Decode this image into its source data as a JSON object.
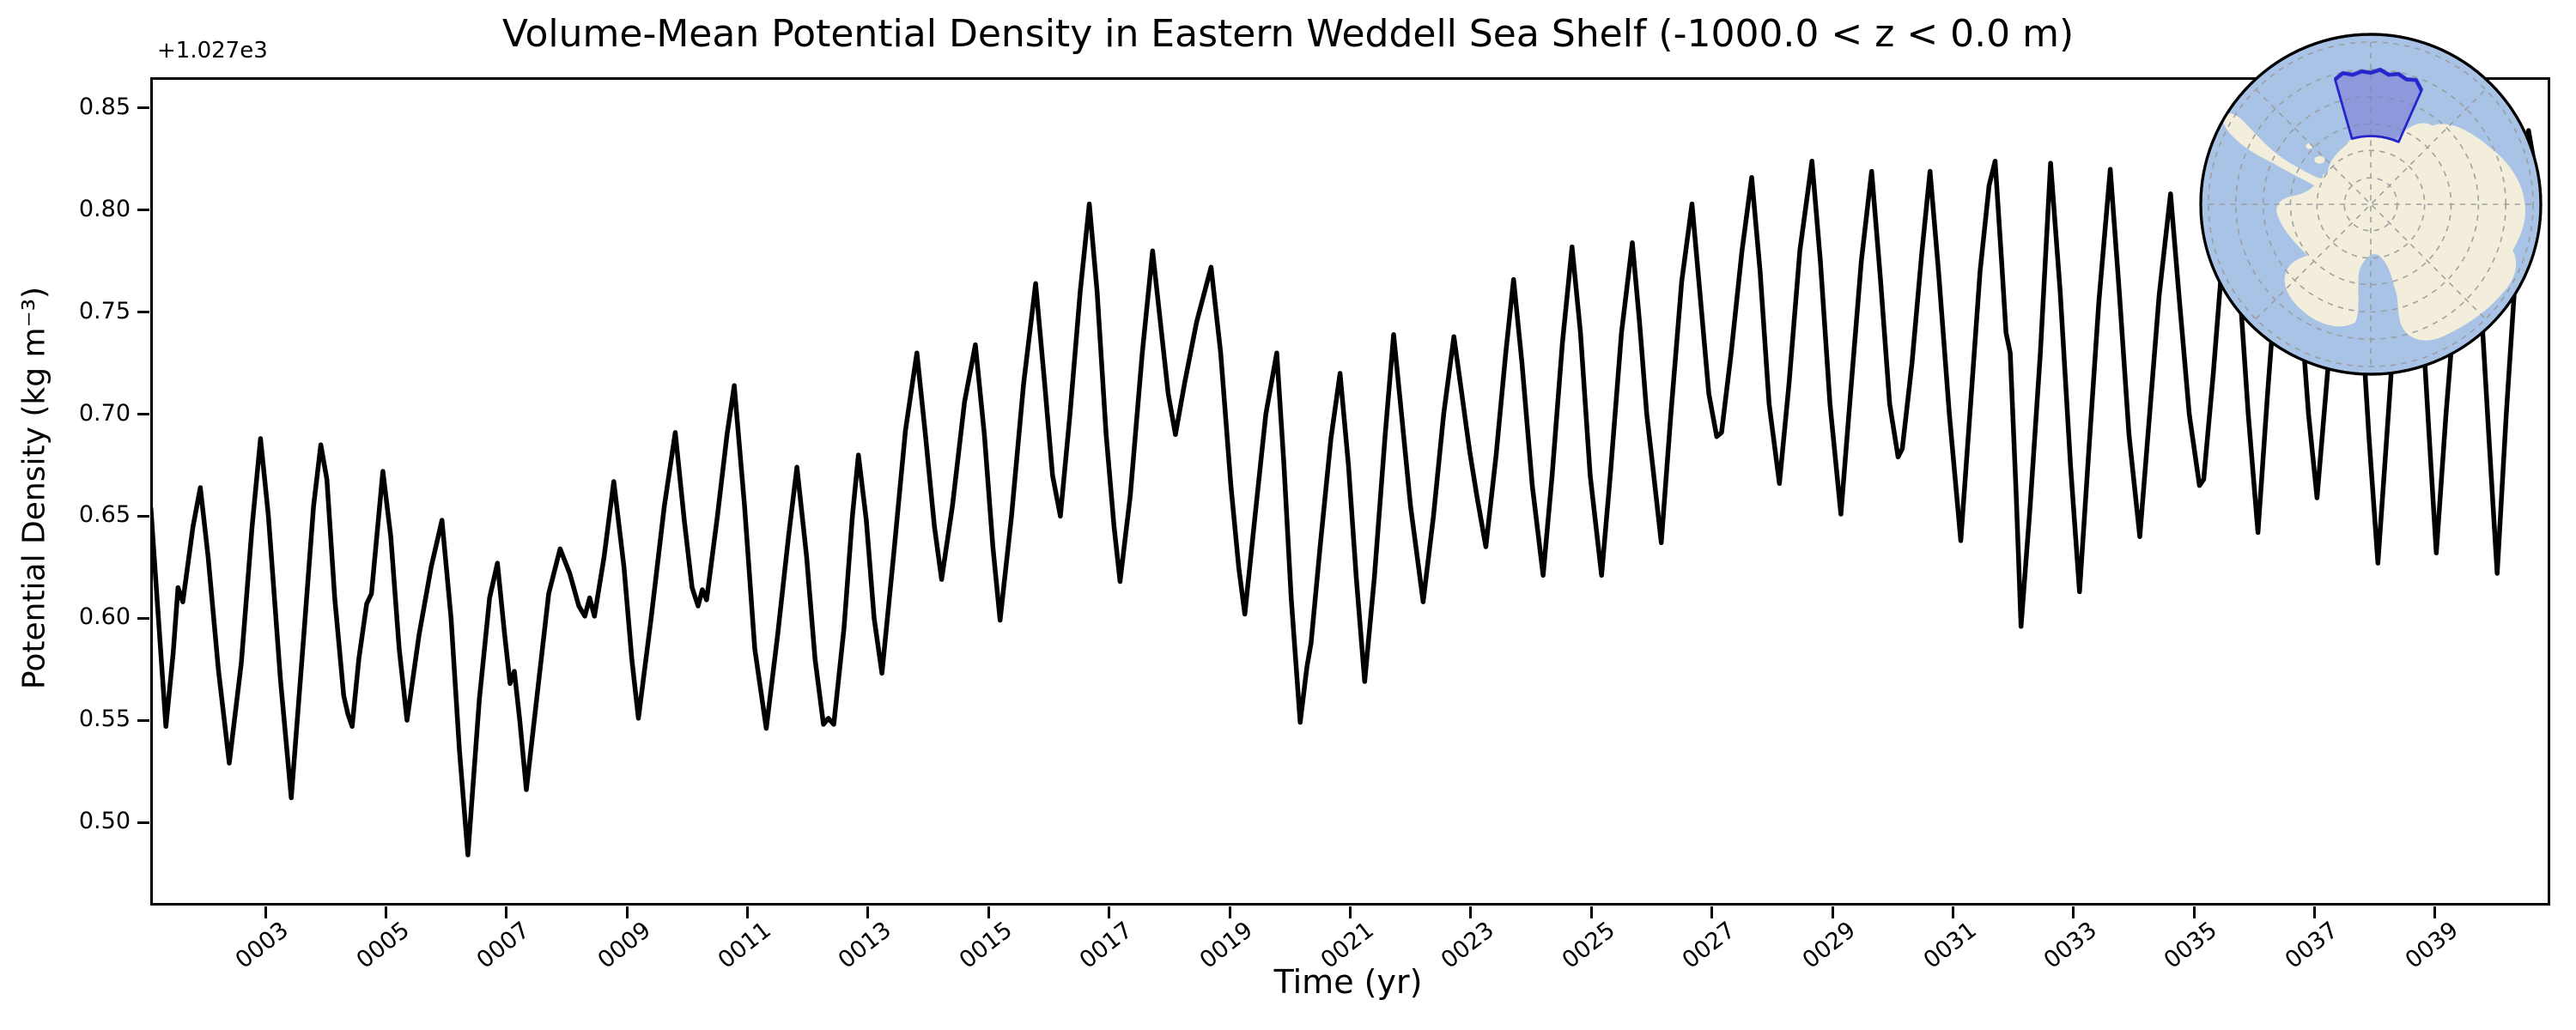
{
  "title": "Volume-Mean Potential Density in Eastern Weddell Sea Shelf (-1000.0 < z < 0.0 m)",
  "axes": {
    "xlabel": "Time (yr)",
    "ylabel": "Potential Density (kg m⁻³)",
    "offset_text": "+1.027e3"
  },
  "inset_map": {
    "description": "Polar stereographic inset of Antarctica with highlighted Eastern Weddell Sea Shelf region",
    "highlighted_region": "Eastern Weddell Sea Shelf",
    "colors": {
      "ocean": "#a9c3e6",
      "land": "#f2eedb",
      "region_fill": "#7d7fd4",
      "region_border": "#2525cc",
      "graticule": "#999999",
      "border": "#000000"
    }
  },
  "chart_data": {
    "type": "line",
    "title": "Volume-Mean Potential Density in Eastern Weddell Sea Shelf (-1000.0 < z < 0.0 m)",
    "xlabel": "Time (yr)",
    "ylabel": "Potential Density (kg m⁻³)",
    "y_offset_note": "y values are offsets from +1.027e3 (i.e. density = 1027 + value, kg m⁻³)",
    "color": "#000000",
    "linewidth": 5.5,
    "grid": false,
    "legend": "none",
    "x_range": [
      1.09,
      40.91
    ],
    "y_range": [
      0.4592,
      0.8651
    ],
    "x_ticks": [
      "0003",
      "0005",
      "0007",
      "0009",
      "0011",
      "0013",
      "0015",
      "0017",
      "0019",
      "0021",
      "0023",
      "0025",
      "0027",
      "0029",
      "0031",
      "0033",
      "0035",
      "0037",
      "0039"
    ],
    "x_tick_years": [
      3,
      5,
      7,
      9,
      11,
      13,
      15,
      17,
      19,
      21,
      23,
      25,
      27,
      29,
      31,
      33,
      35,
      37,
      39
    ],
    "y_ticks": [
      "0.85",
      "0.80",
      "0.75",
      "0.70",
      "0.65",
      "0.60",
      "0.55",
      "0.50"
    ],
    "y_tick_values": [
      0.85,
      0.8,
      0.75,
      0.7,
      0.65,
      0.6,
      0.55,
      0.5
    ],
    "points": [
      [
        1.1,
        0.654
      ],
      [
        1.16,
        0.628
      ],
      [
        1.35,
        0.547
      ],
      [
        1.47,
        0.583
      ],
      [
        1.55,
        0.615
      ],
      [
        1.63,
        0.608
      ],
      [
        1.8,
        0.645
      ],
      [
        1.92,
        0.664
      ],
      [
        2.05,
        0.63
      ],
      [
        2.22,
        0.575
      ],
      [
        2.4,
        0.529
      ],
      [
        2.6,
        0.578
      ],
      [
        2.78,
        0.645
      ],
      [
        2.92,
        0.688
      ],
      [
        3.05,
        0.65
      ],
      [
        3.25,
        0.57
      ],
      [
        3.43,
        0.512
      ],
      [
        3.62,
        0.585
      ],
      [
        3.8,
        0.655
      ],
      [
        3.92,
        0.685
      ],
      [
        4.02,
        0.668
      ],
      [
        4.15,
        0.61
      ],
      [
        4.3,
        0.562
      ],
      [
        4.37,
        0.553
      ],
      [
        4.44,
        0.547
      ],
      [
        4.55,
        0.58
      ],
      [
        4.68,
        0.607
      ],
      [
        4.76,
        0.612
      ],
      [
        4.95,
        0.672
      ],
      [
        5.08,
        0.64
      ],
      [
        5.22,
        0.585
      ],
      [
        5.35,
        0.55
      ],
      [
        5.55,
        0.592
      ],
      [
        5.75,
        0.625
      ],
      [
        5.93,
        0.648
      ],
      [
        6.08,
        0.6
      ],
      [
        6.22,
        0.535
      ],
      [
        6.36,
        0.484
      ],
      [
        6.55,
        0.56
      ],
      [
        6.72,
        0.61
      ],
      [
        6.85,
        0.627
      ],
      [
        6.97,
        0.592
      ],
      [
        7.06,
        0.568
      ],
      [
        7.13,
        0.574
      ],
      [
        7.22,
        0.55
      ],
      [
        7.33,
        0.516
      ],
      [
        7.5,
        0.56
      ],
      [
        7.7,
        0.612
      ],
      [
        7.89,
        0.634
      ],
      [
        8.05,
        0.622
      ],
      [
        8.2,
        0.606
      ],
      [
        8.3,
        0.601
      ],
      [
        8.38,
        0.61
      ],
      [
        8.46,
        0.601
      ],
      [
        8.62,
        0.63
      ],
      [
        8.78,
        0.667
      ],
      [
        8.95,
        0.625
      ],
      [
        9.08,
        0.58
      ],
      [
        9.19,
        0.551
      ],
      [
        9.4,
        0.6
      ],
      [
        9.62,
        0.655
      ],
      [
        9.8,
        0.691
      ],
      [
        9.95,
        0.648
      ],
      [
        10.08,
        0.615
      ],
      [
        10.18,
        0.606
      ],
      [
        10.25,
        0.614
      ],
      [
        10.32,
        0.609
      ],
      [
        10.5,
        0.65
      ],
      [
        10.66,
        0.69
      ],
      [
        10.78,
        0.714
      ],
      [
        10.95,
        0.655
      ],
      [
        11.12,
        0.585
      ],
      [
        11.31,
        0.546
      ],
      [
        11.5,
        0.592
      ],
      [
        11.68,
        0.64
      ],
      [
        11.82,
        0.674
      ],
      [
        11.98,
        0.63
      ],
      [
        12.12,
        0.58
      ],
      [
        12.26,
        0.548
      ],
      [
        12.34,
        0.551
      ],
      [
        12.43,
        0.548
      ],
      [
        12.6,
        0.595
      ],
      [
        12.74,
        0.65
      ],
      [
        12.84,
        0.68
      ],
      [
        12.97,
        0.648
      ],
      [
        13.1,
        0.6
      ],
      [
        13.23,
        0.573
      ],
      [
        13.42,
        0.63
      ],
      [
        13.62,
        0.692
      ],
      [
        13.81,
        0.73
      ],
      [
        13.95,
        0.69
      ],
      [
        14.1,
        0.645
      ],
      [
        14.22,
        0.619
      ],
      [
        14.4,
        0.655
      ],
      [
        14.6,
        0.706
      ],
      [
        14.78,
        0.734
      ],
      [
        14.93,
        0.69
      ],
      [
        15.07,
        0.635
      ],
      [
        15.19,
        0.599
      ],
      [
        15.38,
        0.65
      ],
      [
        15.58,
        0.715
      ],
      [
        15.78,
        0.764
      ],
      [
        15.93,
        0.715
      ],
      [
        16.06,
        0.67
      ],
      [
        16.19,
        0.65
      ],
      [
        16.35,
        0.7
      ],
      [
        16.52,
        0.76
      ],
      [
        16.67,
        0.803
      ],
      [
        16.8,
        0.76
      ],
      [
        16.95,
        0.69
      ],
      [
        17.08,
        0.645
      ],
      [
        17.18,
        0.618
      ],
      [
        17.35,
        0.66
      ],
      [
        17.55,
        0.73
      ],
      [
        17.72,
        0.78
      ],
      [
        17.85,
        0.745
      ],
      [
        17.98,
        0.71
      ],
      [
        18.1,
        0.69
      ],
      [
        18.25,
        0.715
      ],
      [
        18.45,
        0.745
      ],
      [
        18.69,
        0.772
      ],
      [
        18.85,
        0.73
      ],
      [
        19.02,
        0.665
      ],
      [
        19.15,
        0.625
      ],
      [
        19.25,
        0.602
      ],
      [
        19.42,
        0.65
      ],
      [
        19.6,
        0.7
      ],
      [
        19.78,
        0.73
      ],
      [
        19.9,
        0.675
      ],
      [
        20.02,
        0.61
      ],
      [
        20.17,
        0.549
      ],
      [
        20.28,
        0.576
      ],
      [
        20.35,
        0.588
      ],
      [
        20.5,
        0.635
      ],
      [
        20.68,
        0.688
      ],
      [
        20.83,
        0.72
      ],
      [
        20.97,
        0.675
      ],
      [
        21.1,
        0.62
      ],
      [
        21.24,
        0.569
      ],
      [
        21.4,
        0.62
      ],
      [
        21.58,
        0.69
      ],
      [
        21.72,
        0.739
      ],
      [
        21.85,
        0.7
      ],
      [
        22.0,
        0.655
      ],
      [
        22.21,
        0.608
      ],
      [
        22.38,
        0.65
      ],
      [
        22.55,
        0.7
      ],
      [
        22.72,
        0.738
      ],
      [
        22.85,
        0.71
      ],
      [
        22.98,
        0.682
      ],
      [
        23.1,
        0.66
      ],
      [
        23.25,
        0.635
      ],
      [
        23.42,
        0.68
      ],
      [
        23.58,
        0.73
      ],
      [
        23.71,
        0.766
      ],
      [
        23.85,
        0.725
      ],
      [
        24.02,
        0.665
      ],
      [
        24.2,
        0.621
      ],
      [
        24.35,
        0.67
      ],
      [
        24.52,
        0.735
      ],
      [
        24.68,
        0.782
      ],
      [
        24.82,
        0.74
      ],
      [
        24.98,
        0.67
      ],
      [
        25.17,
        0.621
      ],
      [
        25.32,
        0.672
      ],
      [
        25.5,
        0.74
      ],
      [
        25.68,
        0.784
      ],
      [
        25.8,
        0.745
      ],
      [
        25.92,
        0.7
      ],
      [
        26.02,
        0.674
      ],
      [
        26.16,
        0.637
      ],
      [
        26.32,
        0.7
      ],
      [
        26.5,
        0.765
      ],
      [
        26.67,
        0.803
      ],
      [
        26.8,
        0.76
      ],
      [
        26.95,
        0.71
      ],
      [
        27.08,
        0.689
      ],
      [
        27.16,
        0.691
      ],
      [
        27.32,
        0.73
      ],
      [
        27.5,
        0.78
      ],
      [
        27.66,
        0.816
      ],
      [
        27.8,
        0.77
      ],
      [
        27.95,
        0.705
      ],
      [
        28.12,
        0.666
      ],
      [
        28.28,
        0.715
      ],
      [
        28.46,
        0.78
      ],
      [
        28.66,
        0.824
      ],
      [
        28.8,
        0.775
      ],
      [
        28.96,
        0.705
      ],
      [
        29.14,
        0.651
      ],
      [
        29.3,
        0.71
      ],
      [
        29.48,
        0.775
      ],
      [
        29.65,
        0.819
      ],
      [
        29.8,
        0.765
      ],
      [
        29.95,
        0.705
      ],
      [
        30.09,
        0.679
      ],
      [
        30.16,
        0.683
      ],
      [
        30.32,
        0.725
      ],
      [
        30.48,
        0.778
      ],
      [
        30.62,
        0.819
      ],
      [
        30.76,
        0.77
      ],
      [
        30.94,
        0.7
      ],
      [
        31.13,
        0.638
      ],
      [
        31.28,
        0.7
      ],
      [
        31.45,
        0.77
      ],
      [
        31.6,
        0.812
      ],
      [
        31.7,
        0.824
      ],
      [
        31.8,
        0.778
      ],
      [
        31.88,
        0.74
      ],
      [
        31.95,
        0.73
      ],
      [
        32.05,
        0.66
      ],
      [
        32.13,
        0.596
      ],
      [
        32.28,
        0.655
      ],
      [
        32.45,
        0.73
      ],
      [
        32.62,
        0.823
      ],
      [
        32.78,
        0.76
      ],
      [
        32.95,
        0.675
      ],
      [
        33.1,
        0.613
      ],
      [
        33.25,
        0.68
      ],
      [
        33.42,
        0.755
      ],
      [
        33.61,
        0.82
      ],
      [
        33.76,
        0.76
      ],
      [
        33.92,
        0.69
      ],
      [
        34.1,
        0.64
      ],
      [
        34.25,
        0.695
      ],
      [
        34.42,
        0.758
      ],
      [
        34.61,
        0.808
      ],
      [
        34.76,
        0.755
      ],
      [
        34.92,
        0.7
      ],
      [
        35.09,
        0.665
      ],
      [
        35.16,
        0.668
      ],
      [
        35.32,
        0.72
      ],
      [
        35.48,
        0.78
      ],
      [
        35.6,
        0.818
      ],
      [
        35.75,
        0.765
      ],
      [
        35.9,
        0.7
      ],
      [
        36.06,
        0.642
      ],
      [
        36.22,
        0.71
      ],
      [
        36.4,
        0.78
      ],
      [
        36.6,
        0.825
      ],
      [
        36.75,
        0.76
      ],
      [
        36.9,
        0.7
      ],
      [
        37.04,
        0.659
      ],
      [
        37.2,
        0.715
      ],
      [
        37.4,
        0.785
      ],
      [
        37.6,
        0.828
      ],
      [
        37.75,
        0.762
      ],
      [
        37.9,
        0.69
      ],
      [
        38.05,
        0.627
      ],
      [
        38.2,
        0.69
      ],
      [
        38.4,
        0.775
      ],
      [
        38.6,
        0.83
      ],
      [
        38.75,
        0.765
      ],
      [
        38.9,
        0.69
      ],
      [
        39.02,
        0.632
      ],
      [
        39.18,
        0.7
      ],
      [
        39.4,
        0.78
      ],
      [
        39.6,
        0.828
      ],
      [
        39.75,
        0.76
      ],
      [
        39.9,
        0.685
      ],
      [
        40.03,
        0.622
      ],
      [
        40.18,
        0.7
      ],
      [
        40.38,
        0.79
      ],
      [
        40.55,
        0.839
      ],
      [
        40.65,
        0.822
      ],
      [
        40.72,
        0.807
      ]
    ]
  }
}
